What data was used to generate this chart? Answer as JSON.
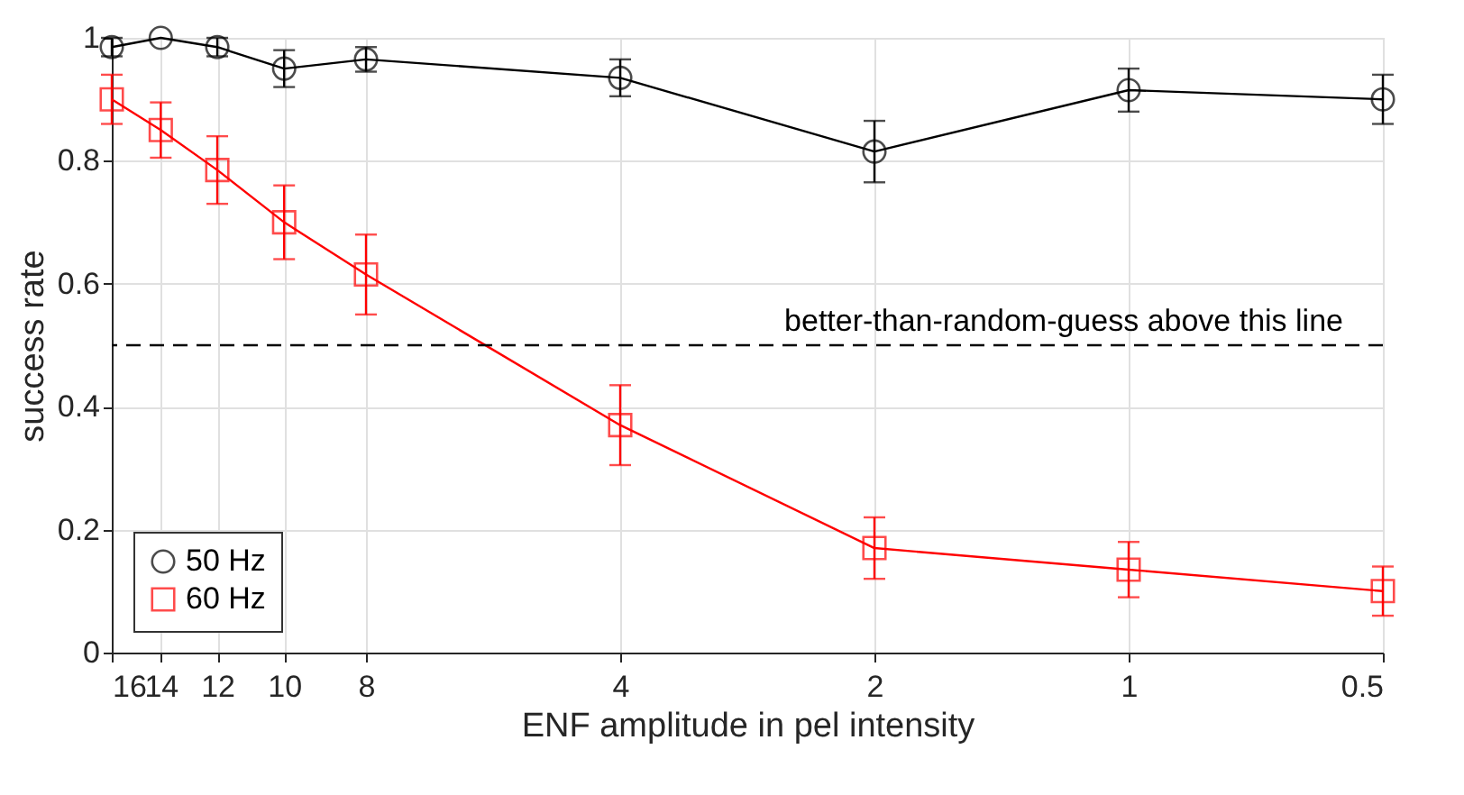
{
  "chart_data": {
    "type": "line",
    "xlabel": "ENF amplitude in pel intensity",
    "ylabel": "success rate",
    "x": [
      16,
      14,
      12,
      10,
      8,
      4,
      2,
      1,
      0.5
    ],
    "series": [
      {
        "name": "50 Hz",
        "color": "#000000",
        "marker": "circle",
        "values": [
          0.985,
          1.0,
          0.985,
          0.95,
          0.965,
          0.935,
          0.815,
          0.915,
          0.9
        ],
        "errors": [
          0.015,
          null,
          0.015,
          0.03,
          0.02,
          0.03,
          0.05,
          0.035,
          0.04
        ]
      },
      {
        "name": "60 Hz",
        "color": "#ff0000",
        "marker": "square",
        "values": [
          0.9,
          0.85,
          0.785,
          0.7,
          0.615,
          0.37,
          0.17,
          0.135,
          0.1
        ],
        "errors": [
          0.04,
          0.045,
          0.055,
          0.06,
          0.065,
          0.065,
          0.05,
          0.045,
          0.04
        ]
      }
    ],
    "log": "x",
    "xlim": [
      16,
      0.5
    ],
    "xticks": [
      16,
      14,
      12,
      10,
      8,
      4,
      2,
      1,
      0.5
    ],
    "ylim": [
      0,
      1
    ],
    "yticks": [
      0,
      0.2,
      0.4,
      0.6,
      0.8,
      1
    ],
    "ref_lines": [
      {
        "axis": "y",
        "value": 0.5,
        "label": "better-than-random-guess above this line",
        "color": "#000000",
        "line_style": "dashed"
      }
    ],
    "grid": true,
    "legend": "bottom left",
    "line_style": "solid"
  }
}
